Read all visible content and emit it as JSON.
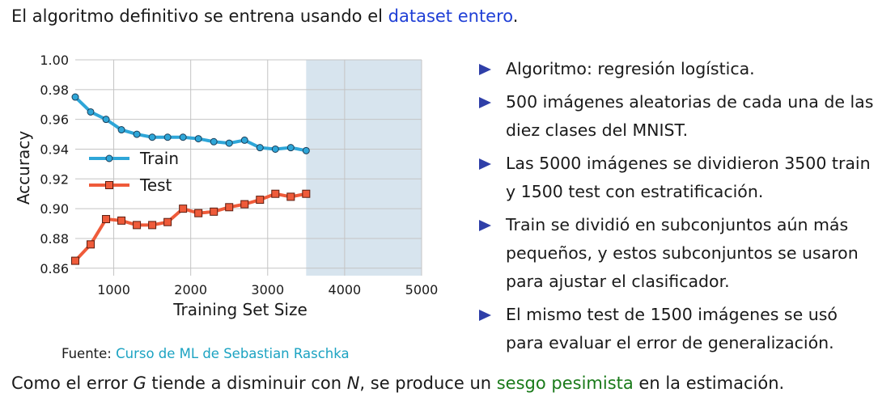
{
  "header": {
    "text_before": "El algoritmo definitivo se entrena usando el ",
    "highlight": "dataset entero",
    "text_after": "."
  },
  "chart_data": {
    "type": "line",
    "xlabel": "Training Set Size",
    "ylabel": "Accuracy",
    "xlim": [
      500,
      5000
    ],
    "ylim": [
      0.855,
      1.0
    ],
    "xticks": [
      1000,
      2000,
      3000,
      4000,
      5000
    ],
    "yticks": [
      0.86,
      0.88,
      0.9,
      0.92,
      0.94,
      0.96,
      0.98,
      1.0
    ],
    "grid": true,
    "legend_position": "center-left",
    "shaded_region": {
      "x_from": 3500,
      "x_to": 5000,
      "color": "#d7e4ee"
    },
    "series": [
      {
        "name": "Train",
        "color": "#2ea6d8",
        "x": [
          500,
          700,
          900,
          1100,
          1300,
          1500,
          1700,
          1900,
          2100,
          2300,
          2500,
          2700,
          2900,
          3100,
          3300,
          3500
        ],
        "y": [
          0.975,
          0.965,
          0.96,
          0.953,
          0.95,
          0.948,
          0.948,
          0.948,
          0.947,
          0.945,
          0.944,
          0.946,
          0.941,
          0.94,
          0.941,
          0.939
        ]
      },
      {
        "name": "Test",
        "color": "#ef5b3a",
        "x": [
          500,
          700,
          900,
          1100,
          1300,
          1500,
          1700,
          1900,
          2100,
          2300,
          2500,
          2700,
          2900,
          3100,
          3300,
          3500
        ],
        "y": [
          0.865,
          0.876,
          0.893,
          0.892,
          0.889,
          0.889,
          0.891,
          0.9,
          0.897,
          0.898,
          0.901,
          0.903,
          0.906,
          0.91,
          0.908,
          0.91
        ]
      }
    ]
  },
  "source": {
    "label": "Fuente: ",
    "link": "Curso de ML de Sebastian Raschka"
  },
  "bullets": [
    "Algoritmo: regresión logística.",
    "500 imágenes aleatorias de cada una de las diez clases del MNIST.",
    "Las 5000 imágenes se dividieron 3500 train y 1500 test con estratificación.",
    "Train se dividió en subconjuntos aún más pequeños, y estos subconjuntos se usaron para ajustar el clasificador.",
    "El mismo test de 1500 imágenes se usó para evaluar el error de generalización."
  ],
  "footer": {
    "part1": "Como el error ",
    "var_g": "G",
    "part2": " tiende a disminuir con ",
    "var_n": "N",
    "part3": ", se produce un ",
    "highlight": "sesgo pesimista",
    "part4": " en la estimación."
  }
}
